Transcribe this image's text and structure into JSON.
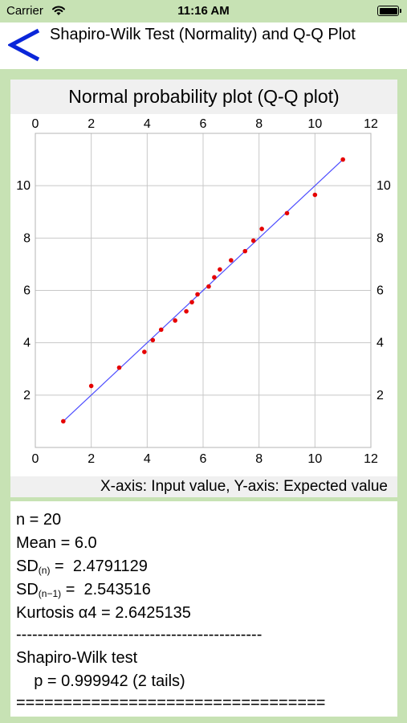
{
  "status": {
    "carrier": "Carrier",
    "time": "11:16 AM"
  },
  "nav": {
    "title": "Shapiro-Wilk Test (Normality) and Q-Q Plot"
  },
  "chart_data": {
    "type": "scatter",
    "title": "Normal probability plot (Q-Q plot)",
    "caption": "X-axis: Input value,   Y-axis: Expected value",
    "xlim": [
      0,
      12
    ],
    "ylim": [
      0,
      12
    ],
    "x_ticks": [
      "0",
      "2",
      "4",
      "6",
      "8",
      "10",
      "12"
    ],
    "y_ticks": [
      "2",
      "4",
      "6",
      "8",
      "10"
    ],
    "grid": true,
    "series": [
      {
        "color": "#e60000",
        "points": [
          [
            1.0,
            1.0
          ],
          [
            2.0,
            2.35
          ],
          [
            3.0,
            3.05
          ],
          [
            3.9,
            3.65
          ],
          [
            4.2,
            4.1
          ],
          [
            4.5,
            4.5
          ],
          [
            5.0,
            4.85
          ],
          [
            5.4,
            5.2
          ],
          [
            5.6,
            5.55
          ],
          [
            5.8,
            5.85
          ],
          [
            6.2,
            6.15
          ],
          [
            6.4,
            6.5
          ],
          [
            6.6,
            6.8
          ],
          [
            7.0,
            7.15
          ],
          [
            7.5,
            7.5
          ],
          [
            7.8,
            7.9
          ],
          [
            8.1,
            8.35
          ],
          [
            9.0,
            8.95
          ],
          [
            10.0,
            9.65
          ],
          [
            11.0,
            11.0
          ]
        ]
      }
    ],
    "reference_line": {
      "color": "#4c4cff",
      "from": [
        1.0,
        1.0
      ],
      "to": [
        11.0,
        11.0
      ]
    }
  },
  "results": {
    "n": "n = 20",
    "mean": "Mean = 6.0",
    "sd_n_label": "SD",
    "sd_n_sub": "(n)",
    "sd_n_value": " =  2.4791129",
    "sd_n1_label": "SD",
    "sd_n1_sub": "(n−1)",
    "sd_n1_value": " =  2.543516",
    "kurtosis": "Kurtosis α4 = 2.6425135",
    "divider": "----------------------------------------------",
    "test_name": "Shapiro-Wilk test",
    "p_value": "    p = 0.999942 (2 tails)",
    "end_rule": "================================="
  }
}
